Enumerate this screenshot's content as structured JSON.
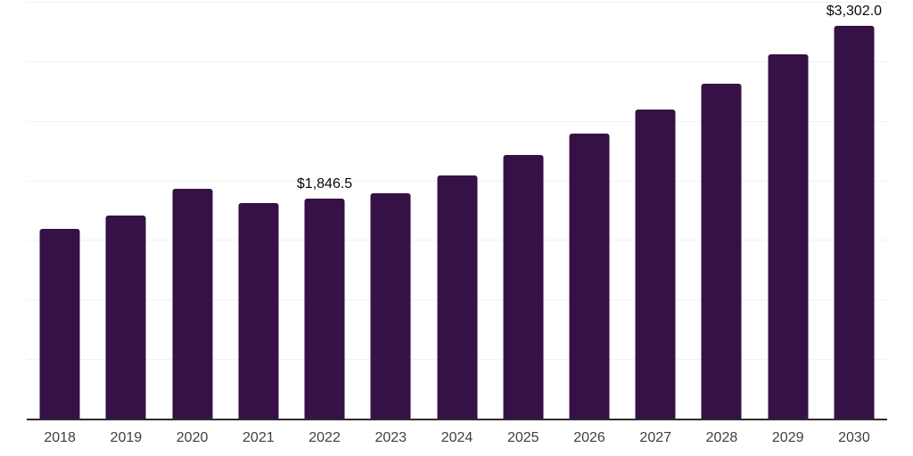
{
  "chart_data": {
    "type": "bar",
    "title": "",
    "xlabel": "",
    "ylabel": "",
    "categories": [
      "2018",
      "2019",
      "2020",
      "2021",
      "2022",
      "2023",
      "2024",
      "2025",
      "2026",
      "2027",
      "2028",
      "2029",
      "2030"
    ],
    "values": [
      1590,
      1705,
      1930,
      1810,
      1846.5,
      1890,
      2045,
      2215,
      2390,
      2595,
      2810,
      3060,
      3302
    ],
    "ylim": [
      0,
      3500
    ],
    "gridline_step": 500,
    "grid": true,
    "legend": false,
    "y_tick_labels_visible": false,
    "data_labels": [
      {
        "category": "2022",
        "text": "$1,846.5"
      },
      {
        "category": "2030",
        "text": "$3,302.0"
      }
    ],
    "colors": {
      "bar": "#351146",
      "gridline": "#f2f2f2",
      "axis_line": "#2e2e2e",
      "value_label": "#0a0a0a",
      "tick_label": "#3f3f3f",
      "background": "#ffffff"
    }
  }
}
